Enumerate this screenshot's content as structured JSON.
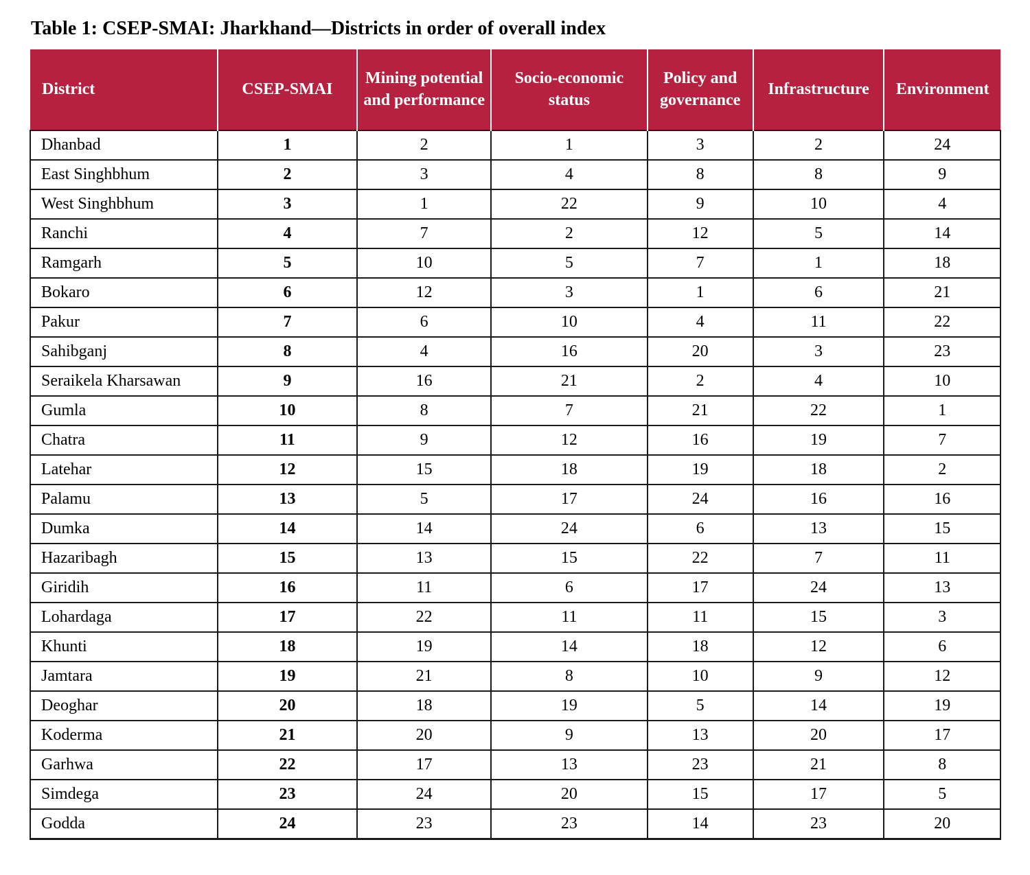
{
  "page": {
    "title": "Table 1: CSEP-SMAI: Jharkhand—Districts in order of overall index"
  },
  "colors": {
    "header_bg": "#b72140",
    "header_text": "#ffffff",
    "border": "#1a1a1a",
    "text": "#000000",
    "background": "#ffffff"
  },
  "table": {
    "columns": [
      "District",
      "CSEP-SMAI",
      "Mining potential and performance",
      "Socio-economic status",
      "Policy and governance",
      "Infrastructure",
      "Environment"
    ],
    "rows": [
      {
        "district": "Dhanbad",
        "csep_smai": "1",
        "mining": "2",
        "socio": "1",
        "policy": "3",
        "infra": "2",
        "env": "24"
      },
      {
        "district": "East Singhbhum",
        "csep_smai": "2",
        "mining": "3",
        "socio": "4",
        "policy": "8",
        "infra": "8",
        "env": "9"
      },
      {
        "district": "West Singhbhum",
        "csep_smai": "3",
        "mining": "1",
        "socio": "22",
        "policy": "9",
        "infra": "10",
        "env": "4"
      },
      {
        "district": "Ranchi",
        "csep_smai": "4",
        "mining": "7",
        "socio": "2",
        "policy": "12",
        "infra": "5",
        "env": "14"
      },
      {
        "district": "Ramgarh",
        "csep_smai": "5",
        "mining": "10",
        "socio": "5",
        "policy": "7",
        "infra": "1",
        "env": "18"
      },
      {
        "district": "Bokaro",
        "csep_smai": "6",
        "mining": "12",
        "socio": "3",
        "policy": "1",
        "infra": "6",
        "env": "21"
      },
      {
        "district": "Pakur",
        "csep_smai": "7",
        "mining": "6",
        "socio": "10",
        "policy": "4",
        "infra": "11",
        "env": "22"
      },
      {
        "district": "Sahibganj",
        "csep_smai": "8",
        "mining": "4",
        "socio": "16",
        "policy": "20",
        "infra": "3",
        "env": "23"
      },
      {
        "district": "Seraikela Kharsawan",
        "csep_smai": "9",
        "mining": "16",
        "socio": "21",
        "policy": "2",
        "infra": "4",
        "env": "10"
      },
      {
        "district": "Gumla",
        "csep_smai": "10",
        "mining": "8",
        "socio": "7",
        "policy": "21",
        "infra": "22",
        "env": "1"
      },
      {
        "district": "Chatra",
        "csep_smai": "11",
        "mining": "9",
        "socio": "12",
        "policy": "16",
        "infra": "19",
        "env": "7"
      },
      {
        "district": "Latehar",
        "csep_smai": "12",
        "mining": "15",
        "socio": "18",
        "policy": "19",
        "infra": "18",
        "env": "2"
      },
      {
        "district": "Palamu",
        "csep_smai": "13",
        "mining": "5",
        "socio": "17",
        "policy": "24",
        "infra": "16",
        "env": "16"
      },
      {
        "district": "Dumka",
        "csep_smai": "14",
        "mining": "14",
        "socio": "24",
        "policy": "6",
        "infra": "13",
        "env": "15"
      },
      {
        "district": "Hazaribagh",
        "csep_smai": "15",
        "mining": "13",
        "socio": "15",
        "policy": "22",
        "infra": "7",
        "env": "11"
      },
      {
        "district": "Giridih",
        "csep_smai": "16",
        "mining": "11",
        "socio": "6",
        "policy": "17",
        "infra": "24",
        "env": "13"
      },
      {
        "district": "Lohardaga",
        "csep_smai": "17",
        "mining": "22",
        "socio": "11",
        "policy": "11",
        "infra": "15",
        "env": "3"
      },
      {
        "district": "Khunti",
        "csep_smai": "18",
        "mining": "19",
        "socio": "14",
        "policy": "18",
        "infra": "12",
        "env": "6"
      },
      {
        "district": "Jamtara",
        "csep_smai": "19",
        "mining": "21",
        "socio": "8",
        "policy": "10",
        "infra": "9",
        "env": "12"
      },
      {
        "district": "Deoghar",
        "csep_smai": "20",
        "mining": "18",
        "socio": "19",
        "policy": "5",
        "infra": "14",
        "env": "19"
      },
      {
        "district": "Koderma",
        "csep_smai": "21",
        "mining": "20",
        "socio": "9",
        "policy": "13",
        "infra": "20",
        "env": "17"
      },
      {
        "district": "Garhwa",
        "csep_smai": "22",
        "mining": "17",
        "socio": "13",
        "policy": "23",
        "infra": "21",
        "env": "8"
      },
      {
        "district": "Simdega",
        "csep_smai": "23",
        "mining": "24",
        "socio": "20",
        "policy": "15",
        "infra": "17",
        "env": "5"
      },
      {
        "district": "Godda",
        "csep_smai": "24",
        "mining": "23",
        "socio": "23",
        "policy": "14",
        "infra": "23",
        "env": "20"
      }
    ]
  }
}
